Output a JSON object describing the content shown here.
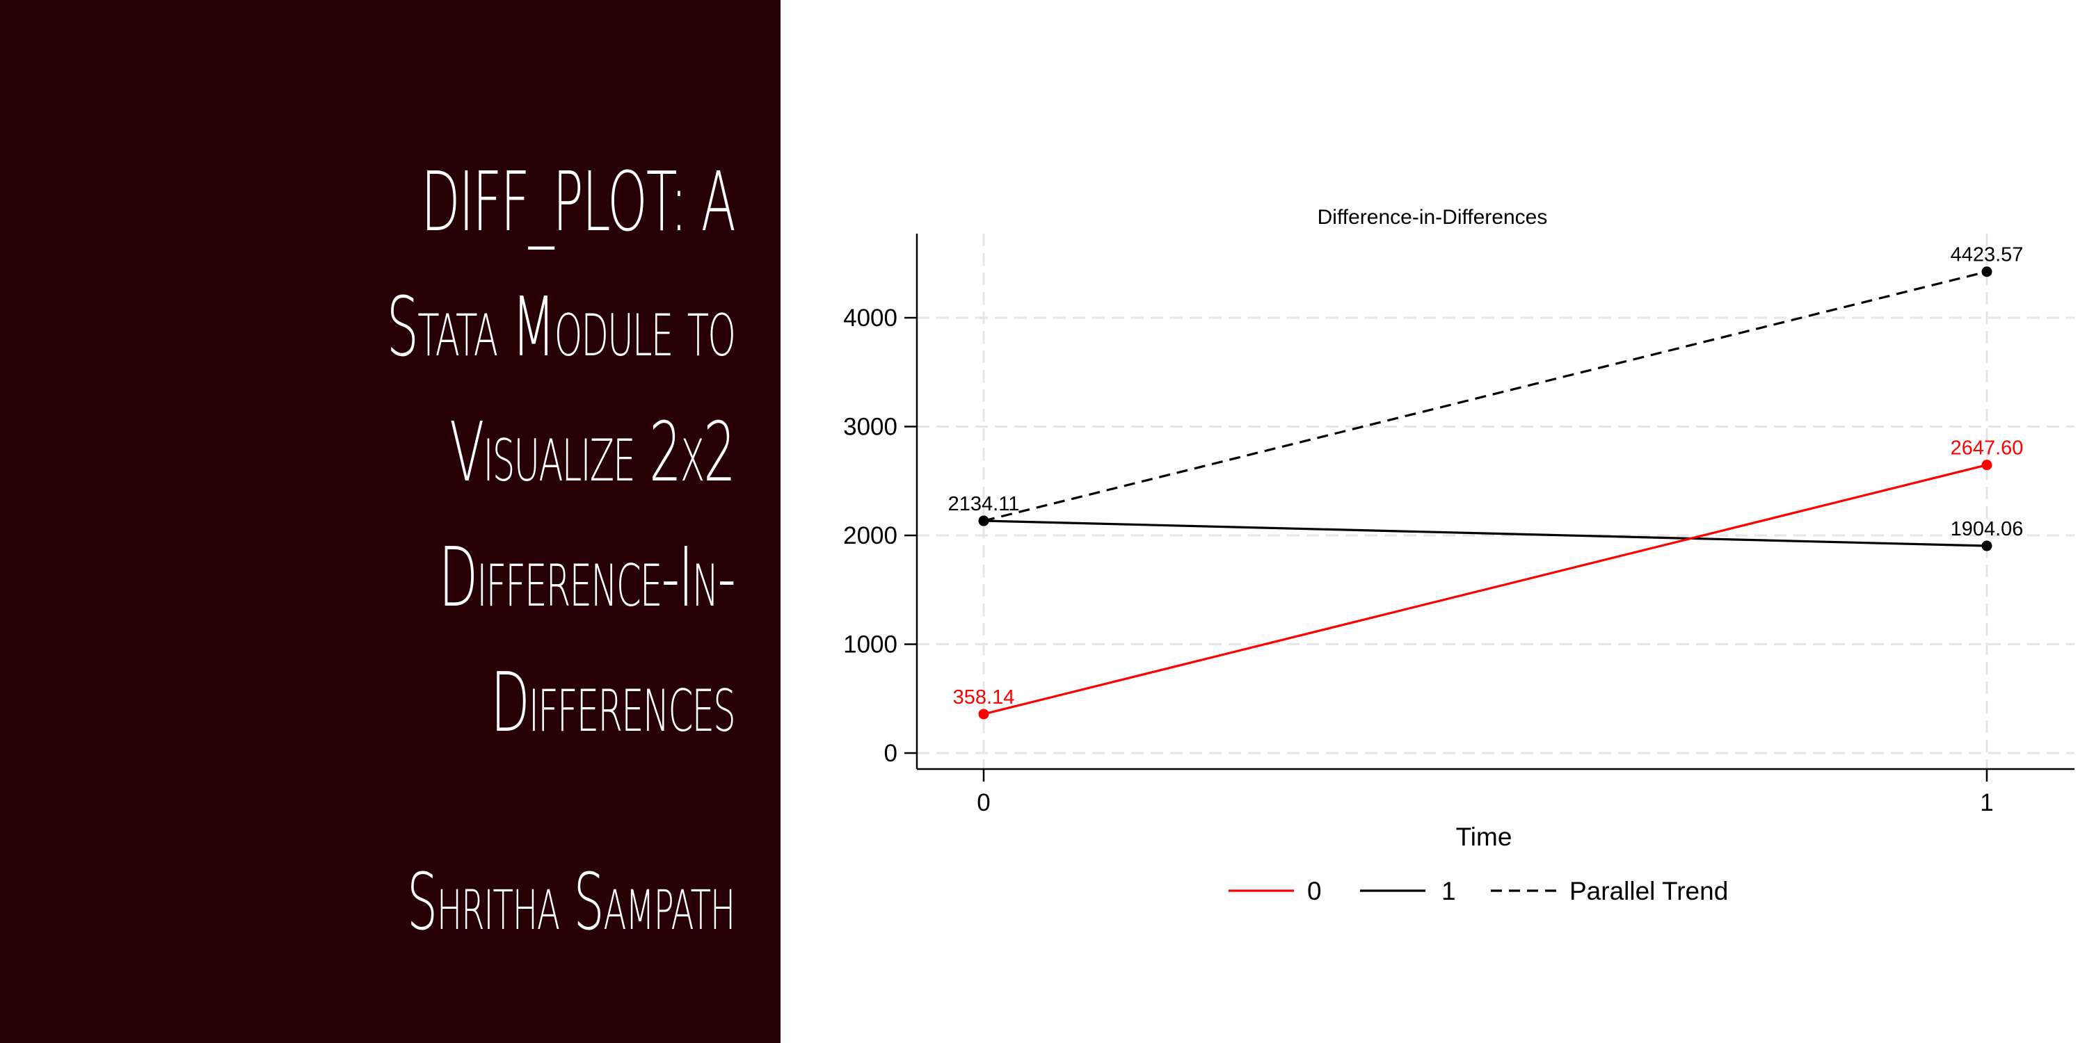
{
  "left_panel": {
    "background": "#260003",
    "title": "DIFF_PLOT: A Stata Module to Visualize 2x2 Difference-In-Differences",
    "author": "Shritha Sampath"
  },
  "chart_data": {
    "type": "line",
    "title": "Difference-in-Differences",
    "xlabel": "Time",
    "ylabel": "",
    "x": [
      0,
      1
    ],
    "xticks": [
      "0",
      "1"
    ],
    "yticks": [
      "0",
      "1000",
      "2000",
      "3000",
      "4000"
    ],
    "ylim": [
      -150,
      4850
    ],
    "grid": true,
    "legend_position": "bottom",
    "series": [
      {
        "name": "0",
        "values": [
          358.14,
          2647.6
        ],
        "labels": [
          "358.14",
          "2647.60"
        ],
        "color": "#ff0000",
        "dash": false
      },
      {
        "name": "1",
        "values": [
          2134.11,
          1904.06
        ],
        "labels": [
          "2134.11",
          "1904.06"
        ],
        "color": "#000000",
        "dash": false
      },
      {
        "name": "Parallel Trend",
        "values": [
          2134.11,
          4423.57
        ],
        "labels": [
          "",
          "4423.57"
        ],
        "color": "#000000",
        "dash": true
      }
    ]
  }
}
